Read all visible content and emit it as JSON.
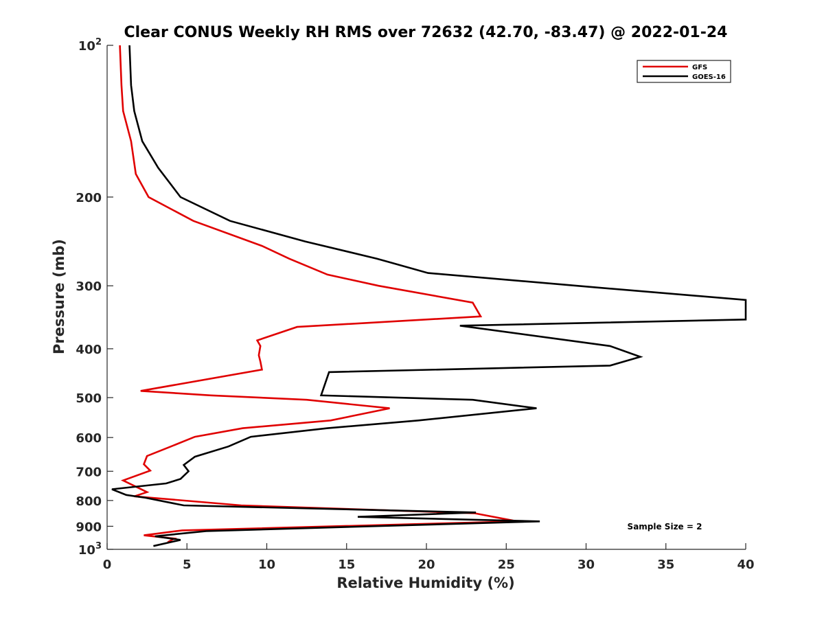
{
  "chart_data": {
    "type": "line",
    "title": "Clear CONUS Weekly RH RMS over 72632 (42.70, -83.47) @ 2022-01-24",
    "xlabel": "Relative Humidity (%)",
    "ylabel": "Pressure (mb)",
    "xlim": [
      0,
      40
    ],
    "ylim": [
      100,
      1000
    ],
    "yscale": "log",
    "yreversed": true,
    "grid": false,
    "legend_position": "top-right",
    "x_ticks": [
      "0",
      "5",
      "10",
      "15",
      "20",
      "25",
      "30",
      "35",
      "40"
    ],
    "y_ticks": [
      {
        "value": 100,
        "label": "10",
        "exp": "2"
      },
      {
        "value": 200,
        "label": "200"
      },
      {
        "value": 300,
        "label": "300"
      },
      {
        "value": 400,
        "label": "400"
      },
      {
        "value": 500,
        "label": "500"
      },
      {
        "value": 600,
        "label": "600"
      },
      {
        "value": 700,
        "label": "700"
      },
      {
        "value": 800,
        "label": "800"
      },
      {
        "value": 900,
        "label": "900"
      },
      {
        "value": 1000,
        "label": "10",
        "exp": "3"
      }
    ],
    "annotation": "Sample Size = 2",
    "series": [
      {
        "name": "GFS",
        "color": "#e00000",
        "points": [
          [
            0.8,
            100
          ],
          [
            0.9,
            120
          ],
          [
            1.0,
            135
          ],
          [
            1.5,
            155
          ],
          [
            1.8,
            180
          ],
          [
            2.6,
            200
          ],
          [
            5.4,
            223
          ],
          [
            9.7,
            250
          ],
          [
            11.4,
            265
          ],
          [
            13.8,
            285
          ],
          [
            17.0,
            300
          ],
          [
            22.9,
            324
          ],
          [
            23.4,
            345
          ],
          [
            11.9,
            362
          ],
          [
            9.4,
            385
          ],
          [
            9.6,
            395
          ],
          [
            9.5,
            412
          ],
          [
            9.6,
            424
          ],
          [
            9.7,
            440
          ],
          [
            2.1,
            485
          ],
          [
            6.5,
            495
          ],
          [
            12.5,
            505
          ],
          [
            17.7,
            525
          ],
          [
            14.0,
            555
          ],
          [
            8.5,
            575
          ],
          [
            5.5,
            598
          ],
          [
            4.0,
            625
          ],
          [
            2.5,
            653
          ],
          [
            2.3,
            678
          ],
          [
            2.7,
            698
          ],
          [
            1.0,
            730
          ],
          [
            2.5,
            770
          ],
          [
            1.7,
            785
          ],
          [
            8.4,
            818
          ],
          [
            23.0,
            848
          ],
          [
            25.7,
            880
          ],
          [
            4.7,
            917
          ],
          [
            2.3,
            938
          ],
          [
            4.2,
            952
          ],
          [
            3.8,
            968
          ]
        ]
      },
      {
        "name": "GOES-16",
        "color": "#000000",
        "points": [
          [
            1.4,
            100
          ],
          [
            1.5,
            120
          ],
          [
            1.7,
            135
          ],
          [
            2.2,
            155
          ],
          [
            3.2,
            175
          ],
          [
            4.6,
            200
          ],
          [
            7.7,
            223
          ],
          [
            12.4,
            245
          ],
          [
            16.9,
            265
          ],
          [
            20.1,
            283
          ],
          [
            30.5,
            302
          ],
          [
            40.0,
            320
          ],
          [
            40.0,
            350
          ],
          [
            22.1,
            360
          ],
          [
            31.5,
            395
          ],
          [
            33.4,
            415
          ],
          [
            31.5,
            432
          ],
          [
            13.9,
            445
          ],
          [
            13.4,
            495
          ],
          [
            22.9,
            505
          ],
          [
            26.9,
            525
          ],
          [
            19.5,
            555
          ],
          [
            13.8,
            575
          ],
          [
            9.0,
            598
          ],
          [
            7.6,
            625
          ],
          [
            5.5,
            655
          ],
          [
            4.8,
            680
          ],
          [
            5.1,
            700
          ],
          [
            4.6,
            725
          ],
          [
            3.7,
            740
          ],
          [
            0.3,
            760
          ],
          [
            1.2,
            780
          ],
          [
            2.4,
            790
          ],
          [
            4.8,
            818
          ],
          [
            23.1,
            845
          ],
          [
            15.7,
            862
          ],
          [
            27.1,
            880
          ],
          [
            6.2,
            920
          ],
          [
            3.0,
            942
          ],
          [
            4.6,
            958
          ],
          [
            2.9,
            985
          ]
        ]
      }
    ]
  }
}
